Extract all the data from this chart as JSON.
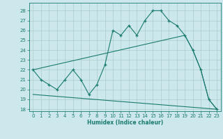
{
  "xlabel": "Humidex (Indice chaleur)",
  "bg_color": "#cce8ec",
  "line_color": "#1a7a6e",
  "grid_color": "#aacccc",
  "xlim": [
    -0.5,
    23.5
  ],
  "ylim": [
    17.8,
    28.8
  ],
  "yticks": [
    18,
    19,
    20,
    21,
    22,
    23,
    24,
    25,
    26,
    27,
    28
  ],
  "xticks": [
    0,
    1,
    2,
    3,
    4,
    5,
    6,
    7,
    8,
    9,
    10,
    11,
    12,
    13,
    14,
    15,
    16,
    17,
    18,
    19,
    20,
    21,
    22,
    23
  ],
  "series1_x": [
    0,
    1,
    2,
    3,
    4,
    5,
    6,
    7,
    8,
    9,
    10,
    11,
    12,
    13,
    14,
    15,
    16,
    17,
    18,
    19,
    20,
    21,
    22,
    23
  ],
  "series1_y": [
    22,
    21,
    20.5,
    20,
    21,
    22,
    21,
    19.5,
    20.5,
    22.5,
    26,
    25.5,
    26.5,
    25.5,
    27,
    28,
    28,
    27,
    26.5,
    25.5,
    24,
    22,
    19,
    18
  ],
  "series2_x": [
    0,
    19,
    20,
    21,
    22,
    23
  ],
  "series2_y": [
    22,
    25.5,
    24,
    22,
    19,
    18
  ],
  "series3_x": [
    0,
    23
  ],
  "series3_y": [
    19.5,
    18
  ]
}
